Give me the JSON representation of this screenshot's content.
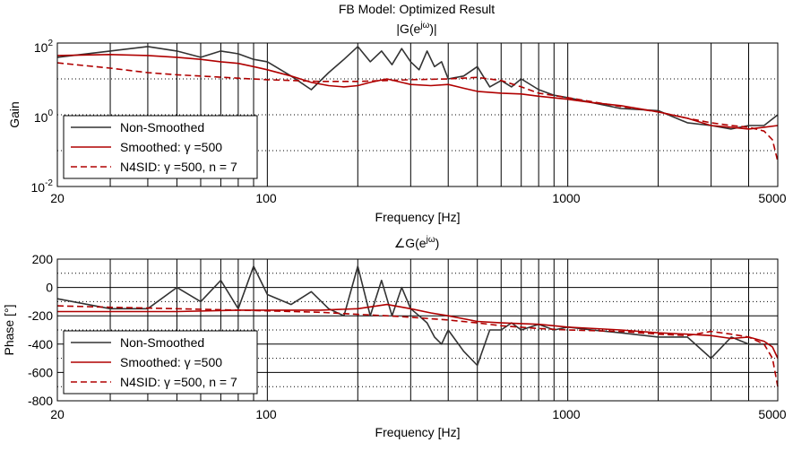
{
  "figure": {
    "title": "FB Model: Optimized Result"
  },
  "colors": {
    "non_smoothed": "#333333",
    "smoothed": "#b00000",
    "n4sid": "#b00000",
    "axes": "#000000",
    "grid": "#000000"
  },
  "chart_data": [
    {
      "type": "line",
      "title": "|G(e^jω)|",
      "title_base": "|G(e",
      "title_sup": "jω",
      "title_end": ")|",
      "xlabel": "Frequency [Hz]",
      "ylabel": "Gain",
      "xscale": "log",
      "yscale": "log",
      "xlim": [
        20,
        5000
      ],
      "ylim": [
        0.01,
        100
      ],
      "xticks": [
        20,
        100,
        1000,
        5000
      ],
      "xtick_labels": [
        "20",
        "100",
        "1000",
        "5000"
      ],
      "ytick_labels": [
        {
          "base": "10",
          "sup": "2",
          "value": 100
        },
        {
          "base": "10",
          "sup": "0",
          "value": 1
        },
        {
          "base": "10",
          "sup": "-2",
          "value": 0.01
        }
      ],
      "grid": "dotted",
      "legend_position": "lower-left",
      "legend": [
        "Non-Smoothed",
        "Smoothed: γ =500",
        "N4SID: γ =500, n = 7"
      ],
      "series": [
        {
          "name": "Non-Smoothed",
          "style": "solid",
          "x": [
            20,
            30,
            40,
            50,
            60,
            70,
            80,
            90,
            100,
            120,
            140,
            160,
            180,
            200,
            220,
            240,
            260,
            280,
            300,
            320,
            340,
            360,
            380,
            400,
            450,
            500,
            550,
            600,
            650,
            700,
            800,
            900,
            1000,
            1200,
            1500,
            2000,
            2500,
            3000,
            3500,
            4000,
            4500,
            5000
          ],
          "y": [
            40,
            60,
            80,
            60,
            40,
            60,
            50,
            35,
            30,
            12,
            5,
            15,
            35,
            80,
            30,
            60,
            25,
            70,
            30,
            18,
            60,
            22,
            30,
            10,
            12,
            22,
            6,
            9,
            6,
            10,
            5,
            3.5,
            3,
            2.2,
            1.5,
            1.3,
            0.6,
            0.5,
            0.4,
            0.5,
            0.5,
            1.0
          ]
        },
        {
          "name": "Smoothed: γ =500",
          "style": "solid",
          "x": [
            20,
            30,
            40,
            50,
            60,
            70,
            80,
            90,
            100,
            120,
            140,
            160,
            180,
            200,
            220,
            250,
            280,
            300,
            350,
            400,
            450,
            500,
            600,
            700,
            800,
            1000,
            1200,
            1500,
            2000,
            2500,
            3000,
            3500,
            4000,
            4500,
            5000
          ],
          "y": [
            45,
            48,
            45,
            40,
            35,
            30,
            27,
            22,
            18,
            12,
            8,
            6.5,
            6,
            6.5,
            8,
            10,
            8,
            7,
            6.5,
            7,
            5.5,
            4.5,
            4,
            3.8,
            3.3,
            2.7,
            2.2,
            1.8,
            1.2,
            0.8,
            0.5,
            0.45,
            0.4,
            0.45,
            0.5
          ]
        },
        {
          "name": "N4SID: γ =500, n = 7",
          "style": "dashed",
          "x": [
            20,
            30,
            40,
            50,
            60,
            80,
            100,
            150,
            200,
            250,
            300,
            400,
            500,
            600,
            700,
            800,
            1000,
            1500,
            2000,
            2500,
            3000,
            3500,
            4000,
            4500,
            4800,
            5000
          ],
          "y": [
            28,
            20,
            15,
            13,
            12,
            10.5,
            9.5,
            8.5,
            8.5,
            9,
            9.5,
            10,
            11,
            9,
            6,
            4,
            3,
            1.7,
            1.2,
            0.8,
            0.6,
            0.5,
            0.45,
            0.35,
            0.2,
            0.05
          ]
        }
      ]
    },
    {
      "type": "line",
      "title": "∠G(e^jω)",
      "title_base": "∠G(e",
      "title_sup": "jω",
      "title_end": ")",
      "xlabel": "Frequency [Hz]",
      "ylabel": "Phase [°]",
      "xscale": "log",
      "yscale": "linear",
      "xlim": [
        20,
        5000
      ],
      "ylim": [
        -800,
        200
      ],
      "xticks": [
        20,
        100,
        1000,
        5000
      ],
      "xtick_labels": [
        "20",
        "100",
        "1000",
        "5000"
      ],
      "yticks": [
        200,
        0,
        -200,
        -400,
        -600,
        -800
      ],
      "ytick_labels": [
        "200",
        "0",
        "-200",
        "-400",
        "-600",
        "-800"
      ],
      "grid": "dotted",
      "legend_position": "lower-left",
      "legend": [
        "Non-Smoothed",
        "Smoothed: γ =500",
        "N4SID: γ =500, n = 7"
      ],
      "series": [
        {
          "name": "Non-Smoothed",
          "style": "solid",
          "x": [
            20,
            30,
            40,
            50,
            60,
            70,
            80,
            90,
            100,
            120,
            140,
            160,
            180,
            200,
            220,
            240,
            260,
            280,
            300,
            320,
            340,
            360,
            380,
            400,
            450,
            500,
            550,
            600,
            650,
            700,
            800,
            900,
            1000,
            1200,
            1500,
            2000,
            2500,
            3000,
            3500,
            4000,
            4500,
            5000
          ],
          "y": [
            -80,
            -150,
            -150,
            0,
            -100,
            50,
            -150,
            150,
            -50,
            -120,
            -30,
            -150,
            -200,
            150,
            -200,
            50,
            -200,
            0,
            -150,
            -200,
            -250,
            -350,
            -400,
            -300,
            -450,
            -550,
            -300,
            -300,
            -250,
            -300,
            -260,
            -300,
            -280,
            -300,
            -320,
            -350,
            -350,
            -500,
            -350,
            -400,
            -400,
            -400
          ]
        },
        {
          "name": "Smoothed: γ =500",
          "style": "solid",
          "x": [
            20,
            50,
            80,
            100,
            150,
            200,
            250,
            300,
            350,
            400,
            500,
            600,
            800,
            1000,
            1500,
            2000,
            2500,
            3000,
            3500,
            4000,
            4500,
            4800,
            5000
          ],
          "y": [
            -170,
            -170,
            -160,
            -160,
            -160,
            -150,
            -120,
            -150,
            -180,
            -200,
            -240,
            -250,
            -260,
            -280,
            -300,
            -320,
            -330,
            -340,
            -360,
            -350,
            -380,
            -420,
            -500
          ]
        },
        {
          "name": "N4SID: γ =500, n = 7",
          "style": "dashed",
          "x": [
            20,
            30,
            50,
            80,
            100,
            150,
            200,
            250,
            300,
            400,
            500,
            600,
            800,
            1000,
            1500,
            2000,
            2500,
            3000,
            3500,
            4000,
            4500,
            4800,
            5000
          ],
          "y": [
            -130,
            -140,
            -150,
            -160,
            -165,
            -175,
            -190,
            -200,
            -210,
            -230,
            -250,
            -270,
            -290,
            -300,
            -310,
            -330,
            -340,
            -310,
            -330,
            -350,
            -400,
            -500,
            -700
          ]
        }
      ]
    }
  ]
}
